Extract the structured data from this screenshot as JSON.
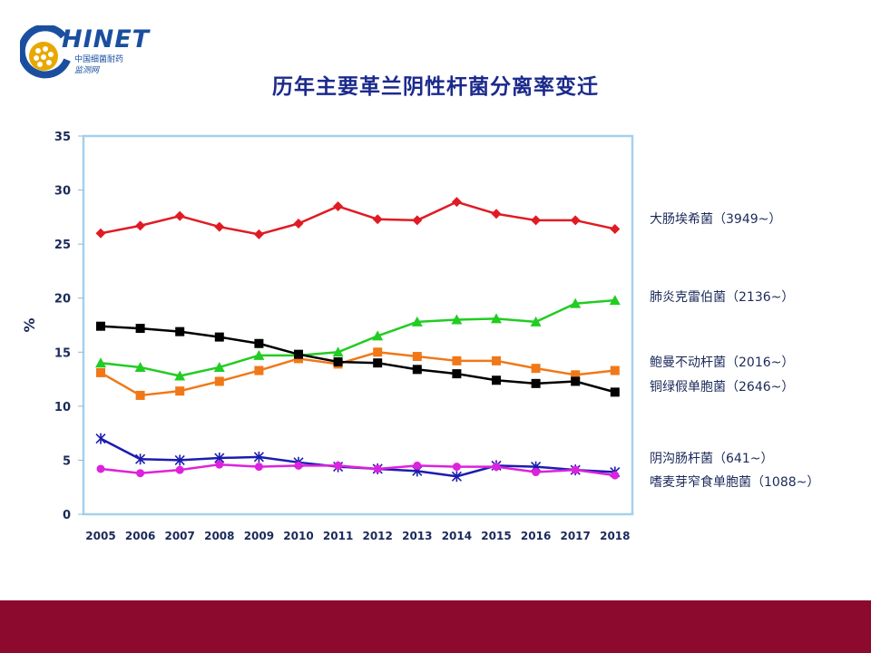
{
  "logo": {
    "word": "HINET",
    "sub1": "中国细菌耐药",
    "sub2": "监测网"
  },
  "chart_data": {
    "type": "line",
    "title": "历年主要革兰阴性杆菌分离率变迁",
    "xlabel": "",
    "ylabel": "%",
    "ylim": [
      0,
      35
    ],
    "yticks": [
      0,
      5,
      10,
      15,
      20,
      25,
      30,
      35
    ],
    "grid": false,
    "legend_position": "right",
    "categories": [
      "2005",
      "2006",
      "2007",
      "2008",
      "2009",
      "2010",
      "2011",
      "2012",
      "2013",
      "2014",
      "2015",
      "2016",
      "2017",
      "2018"
    ],
    "series": [
      {
        "name": "大肠埃希菌（3949~）",
        "color": "#e01b24",
        "marker": "diamond",
        "values": [
          26.0,
          26.7,
          27.6,
          26.6,
          25.9,
          26.9,
          28.5,
          27.3,
          27.2,
          28.9,
          27.8,
          27.2,
          27.2,
          26.4
        ]
      },
      {
        "name": "肺炎克雷伯菌（2136~）",
        "color": "#22cc22",
        "marker": "triangle",
        "values": [
          14.0,
          13.6,
          12.8,
          13.6,
          14.7,
          14.7,
          15.0,
          16.5,
          17.8,
          18.0,
          18.1,
          17.8,
          19.5,
          19.8
        ]
      },
      {
        "name": "鲍曼不动杆菌（2016~）",
        "color": "#f07818",
        "marker": "square",
        "values": [
          13.1,
          11.0,
          11.4,
          12.3,
          13.3,
          14.4,
          13.9,
          15.0,
          14.6,
          14.2,
          14.2,
          13.5,
          12.9,
          13.3
        ]
      },
      {
        "name": "铜绿假单胞菌（2646~）",
        "color": "#000000",
        "marker": "square",
        "values": [
          17.4,
          17.2,
          16.9,
          16.4,
          15.8,
          14.8,
          14.1,
          14.0,
          13.4,
          13.0,
          12.4,
          12.1,
          12.3,
          11.3
        ]
      },
      {
        "name": "阴沟肠杆菌（641~）",
        "color": "#1c1cb0",
        "marker": "star",
        "values": [
          7.0,
          5.1,
          5.0,
          5.2,
          5.3,
          4.8,
          4.4,
          4.2,
          4.0,
          3.5,
          4.5,
          4.4,
          4.1,
          3.9
        ]
      },
      {
        "name": "嗜麦芽窄食单胞菌（1088~）",
        "color": "#dd22dd",
        "marker": "circle",
        "values": [
          4.2,
          3.8,
          4.1,
          4.6,
          4.4,
          4.5,
          4.5,
          4.2,
          4.5,
          4.4,
          4.4,
          3.9,
          4.1,
          3.6
        ]
      }
    ]
  }
}
